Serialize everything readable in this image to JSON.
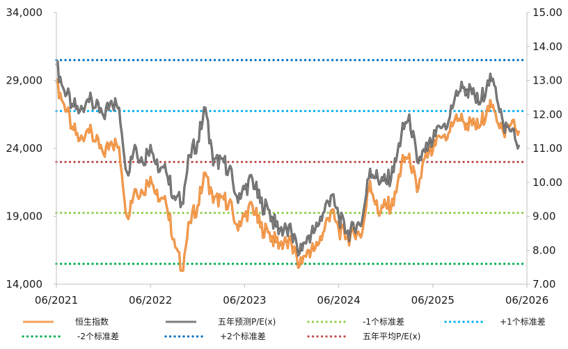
{
  "chart_data": {
    "type": "line",
    "x_ticks": [
      "06/2021",
      "06/2022",
      "06/2023",
      "06/2024",
      "06/2025",
      "06/2026"
    ],
    "left_axis": {
      "ylim": [
        14000,
        34000
      ],
      "ticks": [
        "14,000",
        "19,000",
        "24,000",
        "29,000",
        "34,000"
      ]
    },
    "right_axis": {
      "ylim": [
        7.0,
        15.0
      ],
      "ticks": [
        "7.00",
        "8.00",
        "9.00",
        "10.00",
        "11.00",
        "12.00",
        "13.00",
        "14.00",
        "15.00"
      ]
    },
    "series": [
      {
        "name": "恒生指数",
        "axis": "left",
        "color": "#f4a259",
        "points": [
          [
            "2021-06",
            28800
          ],
          [
            "2021-07",
            27200
          ],
          [
            "2021-08",
            25600
          ],
          [
            "2021-09",
            24600
          ],
          [
            "2021-10",
            25400
          ],
          [
            "2021-11",
            24500
          ],
          [
            "2021-12",
            23600
          ],
          [
            "2022-01",
            24500
          ],
          [
            "2022-02",
            24100
          ],
          [
            "2022-03",
            19000
          ],
          [
            "2022-04",
            21000
          ],
          [
            "2022-05",
            20800
          ],
          [
            "2022-06",
            21900
          ],
          [
            "2022-07",
            20100
          ],
          [
            "2022-08",
            19900
          ],
          [
            "2022-09",
            17300
          ],
          [
            "2022-10",
            15000
          ],
          [
            "2022-11",
            18600
          ],
          [
            "2022-12",
            19800
          ],
          [
            "2023-01",
            22200
          ],
          [
            "2023-02",
            20000
          ],
          [
            "2023-03",
            20400
          ],
          [
            "2023-04",
            20000
          ],
          [
            "2023-05",
            18400
          ],
          [
            "2023-06",
            19000
          ],
          [
            "2023-07",
            19800
          ],
          [
            "2023-08",
            18200
          ],
          [
            "2023-09",
            17800
          ],
          [
            "2023-10",
            17100
          ],
          [
            "2023-11",
            17000
          ],
          [
            "2023-12",
            16900
          ],
          [
            "2024-01",
            15300
          ],
          [
            "2024-02",
            16500
          ],
          [
            "2024-03",
            16600
          ],
          [
            "2024-04",
            17800
          ],
          [
            "2024-05",
            19400
          ],
          [
            "2024-06",
            18000
          ],
          [
            "2024-07",
            17400
          ],
          [
            "2024-08",
            17600
          ],
          [
            "2024-09",
            17800
          ],
          [
            "2024-10",
            21600
          ],
          [
            "2024-11",
            19300
          ],
          [
            "2024-12",
            19800
          ],
          [
            "2025-01",
            19800
          ],
          [
            "2025-02",
            22800
          ],
          [
            "2025-03",
            23600
          ],
          [
            "2025-04",
            20800
          ],
          [
            "2025-05",
            23300
          ],
          [
            "2025-06",
            23800
          ],
          [
            "2025-07",
            24800
          ],
          [
            "2025-08",
            25100
          ],
          [
            "2025-09",
            26500
          ],
          [
            "2025-10",
            25900
          ],
          [
            "2025-11",
            25700
          ],
          [
            "2025-12",
            25600
          ],
          [
            "2026-01",
            27100
          ],
          [
            "2026-02",
            26600
          ],
          [
            "2026-03",
            25200
          ],
          [
            "2026-04",
            25800
          ],
          [
            "2026-05",
            25300
          ]
        ]
      },
      {
        "name": "五年预测P/E(x)",
        "axis": "right",
        "color": "#7f7f7f",
        "points": [
          [
            "2021-06",
            13.45
          ],
          [
            "2021-07",
            12.7
          ],
          [
            "2021-08",
            12.3
          ],
          [
            "2021-09",
            12.1
          ],
          [
            "2021-10",
            12.45
          ],
          [
            "2021-11",
            12.2
          ],
          [
            "2021-12",
            11.95
          ],
          [
            "2022-01",
            12.4
          ],
          [
            "2022-02",
            12.2
          ],
          [
            "2022-03",
            10.3
          ],
          [
            "2022-04",
            11.1
          ],
          [
            "2022-05",
            10.6
          ],
          [
            "2022-06",
            11.1
          ],
          [
            "2022-07",
            10.3
          ],
          [
            "2022-08",
            10.3
          ],
          [
            "2022-09",
            9.6
          ],
          [
            "2022-10",
            9.4
          ],
          [
            "2022-11",
            10.8
          ],
          [
            "2022-12",
            11.2
          ],
          [
            "2023-01",
            12.2
          ],
          [
            "2023-02",
            10.5
          ],
          [
            "2023-03",
            10.7
          ],
          [
            "2023-04",
            10.4
          ],
          [
            "2023-05",
            9.6
          ],
          [
            "2023-06",
            9.8
          ],
          [
            "2023-07",
            10.1
          ],
          [
            "2023-08",
            9.4
          ],
          [
            "2023-09",
            9.2
          ],
          [
            "2023-10",
            8.7
          ],
          [
            "2023-11",
            8.6
          ],
          [
            "2023-12",
            8.5
          ],
          [
            "2024-01",
            7.9
          ],
          [
            "2024-02",
            8.4
          ],
          [
            "2024-03",
            8.6
          ],
          [
            "2024-04",
            9.1
          ],
          [
            "2024-05",
            9.6
          ],
          [
            "2024-06",
            9.0
          ],
          [
            "2024-07",
            8.5
          ],
          [
            "2024-08",
            8.6
          ],
          [
            "2024-09",
            8.9
          ],
          [
            "2024-10",
            10.4
          ],
          [
            "2024-11",
            10.1
          ],
          [
            "2024-12",
            10.0
          ],
          [
            "2025-01",
            10.3
          ],
          [
            "2025-02",
            11.4
          ],
          [
            "2025-03",
            12.0
          ],
          [
            "2025-04",
            10.6
          ],
          [
            "2025-05",
            10.9
          ],
          [
            "2025-06",
            11.2
          ],
          [
            "2025-07",
            11.6
          ],
          [
            "2025-08",
            11.8
          ],
          [
            "2025-09",
            12.7
          ],
          [
            "2025-10",
            12.8
          ],
          [
            "2025-11",
            12.6
          ],
          [
            "2025-12",
            12.3
          ],
          [
            "2026-01",
            13.0
          ],
          [
            "2026-02",
            12.8
          ],
          [
            "2026-03",
            11.7
          ],
          [
            "2026-04",
            11.5
          ],
          [
            "2026-05",
            11.1
          ]
        ]
      }
    ],
    "reference_lines": [
      {
        "name": "-1个标准差",
        "axis": "right",
        "value": 9.1,
        "color": "#92d050"
      },
      {
        "name": "+1个标准差",
        "axis": "right",
        "value": 12.1,
        "color": "#00b0f0"
      },
      {
        "name": "-2个标准差",
        "axis": "right",
        "value": 7.6,
        "color": "#00b050"
      },
      {
        "name": "+2个标准差",
        "axis": "right",
        "value": 13.6,
        "color": "#0070c0"
      },
      {
        "name": "五年平均P/E(x)",
        "axis": "right",
        "value": 10.6,
        "color": "#c0504d"
      }
    ],
    "legend_order": [
      "恒生指数",
      "五年预测P/E(x)",
      "-1个标准差",
      "+1个标准差",
      "-2个标准差",
      "+2个标准差",
      "五年平均P/E(x)"
    ],
    "legend_position": "bottom",
    "grid": false
  }
}
